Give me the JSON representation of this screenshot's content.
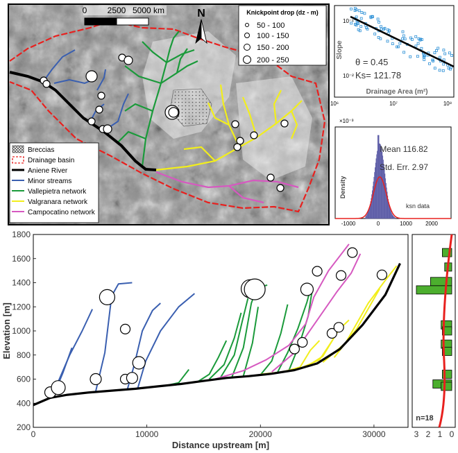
{
  "map": {
    "scale_ticks": [
      "0",
      "2500",
      "5000 km"
    ],
    "north": "N",
    "knickpoint_legend": {
      "title": "Knickpoint drop (dz - m)",
      "classes": [
        "50 - 100",
        "100 - 150",
        "150 - 200",
        "200 - 250"
      ]
    },
    "legend": [
      "Breccias",
      "Drainage basin",
      "Aniene River",
      "Minor streams",
      "Vallepietra network",
      "Valgranara network",
      "Campocatino network"
    ],
    "colors": {
      "aniene": "#000000",
      "minor": "#3a5fb0",
      "vallepietra": "#1a9a3a",
      "valgranara": "#f2ee1c",
      "campocatino": "#d659c0",
      "basin": "#e8201e"
    }
  },
  "chart_data": [
    {
      "type": "scatter",
      "xlabel": "Drainage Area (m²)",
      "ylabel": "Slope",
      "x_scale": "log",
      "y_scale": "log",
      "xlim": [
        1000000,
        1000000000
      ],
      "x_ticks": [
        "10⁶",
        "10⁷",
        "10⁸"
      ],
      "y_ticks": [
        "10⁻¹",
        "10⁻²"
      ],
      "annotations": [
        "θ = 0.45",
        "Ks= 121.78"
      ],
      "fit": {
        "theta": 0.45,
        "ks": 121.78
      }
    },
    {
      "type": "bar",
      "ylabel": "Density",
      "x_multiplier": "×10⁻³",
      "x_ticks": [
        "-1000",
        "0",
        "1000",
        "2000"
      ],
      "xlim": [
        -1500,
        2700
      ],
      "annotations": [
        "Mean 116.82",
        "Std. Err. 2.97"
      ],
      "series_label": "ksn data",
      "mean": 116.82,
      "std_err": 2.97
    },
    {
      "type": "line",
      "xlabel": "Distance upstream [m]",
      "ylabel": "Elevation [m]",
      "xlim": [
        0,
        33000
      ],
      "ylim": [
        200,
        1800
      ],
      "x_ticks": [
        0,
        10000,
        20000,
        30000
      ],
      "y_ticks": [
        200,
        400,
        600,
        800,
        1000,
        1200,
        1400,
        1600,
        1800
      ],
      "series": [
        {
          "color": "#000000",
          "points": [
            [
              0,
              385
            ],
            [
              1500,
              445
            ],
            [
              3000,
              470
            ],
            [
              5000,
              490
            ],
            [
              7000,
              505
            ],
            [
              9000,
              520
            ],
            [
              11000,
              540
            ],
            [
              13000,
              560
            ],
            [
              15000,
              585
            ],
            [
              17000,
              610
            ],
            [
              19000,
              625
            ],
            [
              21000,
              645
            ],
            [
              23000,
              675
            ],
            [
              25000,
              730
            ],
            [
              27000,
              850
            ],
            [
              29000,
              1050
            ],
            [
              31000,
              1300
            ],
            [
              32300,
              1560
            ]
          ]
        },
        {
          "color": "#3a5fb0",
          "points": [
            [
              1400,
              450
            ],
            [
              2200,
              580
            ],
            [
              3200,
              800
            ],
            [
              4300,
              1000
            ],
            [
              5200,
              1180
            ]
          ]
        },
        {
          "color": "#3a5fb0",
          "points": [
            [
              1800,
              470
            ],
            [
              2600,
              650
            ],
            [
              3400,
              860
            ]
          ]
        },
        {
          "color": "#3a5fb0",
          "points": [
            [
              5500,
              500
            ],
            [
              6300,
              820
            ],
            [
              6900,
              1290
            ],
            [
              7500,
              1390
            ],
            [
              8700,
              1400
            ]
          ]
        },
        {
          "color": "#3a5fb0",
          "points": [
            [
              8300,
              520
            ],
            [
              8900,
              720
            ],
            [
              9600,
              1000
            ],
            [
              10500,
              1170
            ],
            [
              11200,
              1230
            ]
          ]
        },
        {
          "color": "#3a5fb0",
          "points": [
            [
              9200,
              525
            ],
            [
              9900,
              750
            ],
            [
              11200,
              1000
            ],
            [
              12800,
              1200
            ],
            [
              14200,
              1310
            ]
          ]
        },
        {
          "color": "#1a9a3a",
          "points": [
            [
              11600,
              545
            ],
            [
              12800,
              570
            ],
            [
              13700,
              680
            ]
          ]
        },
        {
          "color": "#1a9a3a",
          "points": [
            [
              14500,
              580
            ],
            [
              15500,
              640
            ],
            [
              16300,
              780
            ],
            [
              17000,
              920
            ]
          ]
        },
        {
          "color": "#1a9a3a",
          "points": [
            [
              15500,
              600
            ],
            [
              16800,
              720
            ],
            [
              17700,
              940
            ],
            [
              18300,
              1150
            ]
          ]
        },
        {
          "color": "#1a9a3a",
          "points": [
            [
              16500,
              615
            ],
            [
              17700,
              800
            ],
            [
              18400,
              1080
            ],
            [
              18900,
              1270
            ]
          ]
        },
        {
          "color": "#1a9a3a",
          "points": [
            [
              17500,
              620
            ],
            [
              18500,
              860
            ],
            [
              19200,
              1230
            ],
            [
              19700,
              1360
            ],
            [
              20600,
              1380
            ]
          ]
        },
        {
          "color": "#1a9a3a",
          "points": [
            [
              18500,
              625
            ],
            [
              19300,
              900
            ],
            [
              19800,
              1200
            ]
          ]
        },
        {
          "color": "#1a9a3a",
          "points": [
            [
              20000,
              635
            ],
            [
              21000,
              750
            ],
            [
              21800,
              980
            ],
            [
              22400,
              1220
            ]
          ]
        },
        {
          "color": "#1a9a3a",
          "points": [
            [
              21500,
              655
            ],
            [
              22400,
              820
            ],
            [
              23300,
              1020
            ],
            [
              24100,
              1240
            ],
            [
              24500,
              1380
            ]
          ]
        },
        {
          "color": "#1a9a3a",
          "points": [
            [
              22500,
              670
            ],
            [
              23400,
              880
            ],
            [
              24200,
              1120
            ],
            [
              24600,
              1360
            ]
          ]
        },
        {
          "color": "#f2ee1c",
          "points": [
            [
              20000,
              640
            ],
            [
              22000,
              660
            ],
            [
              23500,
              700
            ],
            [
              24400,
              840
            ],
            [
              25200,
              920
            ]
          ]
        },
        {
          "color": "#f2ee1c",
          "points": [
            [
              21000,
              645
            ],
            [
              23500,
              690
            ],
            [
              25200,
              760
            ],
            [
              26400,
              930
            ]
          ]
        },
        {
          "color": "#f2ee1c",
          "points": [
            [
              24000,
              700
            ],
            [
              25500,
              790
            ],
            [
              26900,
              1010
            ],
            [
              27800,
              1090
            ]
          ]
        },
        {
          "color": "#f2ee1c",
          "points": [
            [
              25500,
              740
            ],
            [
              27500,
              900
            ],
            [
              29500,
              1230
            ],
            [
              31000,
              1420
            ],
            [
              32000,
              1540
            ]
          ]
        },
        {
          "color": "#f2ee1c",
          "points": [
            [
              26500,
              780
            ],
            [
              28500,
              1020
            ],
            [
              30500,
              1350
            ]
          ]
        },
        {
          "color": "#d659c0",
          "points": [
            [
              16000,
              600
            ],
            [
              18500,
              670
            ],
            [
              20500,
              760
            ],
            [
              22500,
              880
            ],
            [
              24000,
              1060
            ],
            [
              24700,
              1280
            ],
            [
              26000,
              1500
            ],
            [
              27800,
              1720
            ]
          ]
        },
        {
          "color": "#d659c0",
          "points": [
            [
              21000,
              660
            ],
            [
              23000,
              820
            ],
            [
              25000,
              1090
            ],
            [
              26700,
              1320
            ],
            [
              28000,
              1480
            ],
            [
              28800,
              1640
            ]
          ]
        }
      ],
      "knickpoints": [
        [
          1500,
          490,
          8
        ],
        [
          2200,
          530,
          10
        ],
        [
          5500,
          600,
          8
        ],
        [
          6500,
          1280,
          11
        ],
        [
          8100,
          600,
          7
        ],
        [
          8100,
          1015,
          7
        ],
        [
          8700,
          610,
          8
        ],
        [
          9300,
          735,
          9
        ],
        [
          19100,
          1350,
          13
        ],
        [
          19500,
          1345,
          15
        ],
        [
          23000,
          850,
          7
        ],
        [
          23700,
          905,
          7
        ],
        [
          24100,
          1345,
          9
        ],
        [
          25000,
          1495,
          7
        ],
        [
          26300,
          980,
          7
        ],
        [
          26900,
          1030,
          7
        ],
        [
          27100,
          1460,
          7
        ],
        [
          28100,
          1650,
          7
        ],
        [
          30700,
          1465,
          7
        ]
      ]
    },
    {
      "type": "bar",
      "orientation": "horizontal",
      "label": "n=18",
      "x_ticks": [
        "3",
        "2",
        "1",
        "0"
      ],
      "bars": [
        [
          1650,
          0.8
        ],
        [
          1530,
          0.6
        ],
        [
          1410,
          1.8
        ],
        [
          1340,
          3.0
        ],
        [
          1050,
          0.9
        ],
        [
          1000,
          0.8
        ],
        [
          890,
          0.9
        ],
        [
          830,
          0.8
        ],
        [
          640,
          0.8
        ],
        [
          560,
          1.6
        ],
        [
          540,
          0.9
        ]
      ]
    }
  ]
}
